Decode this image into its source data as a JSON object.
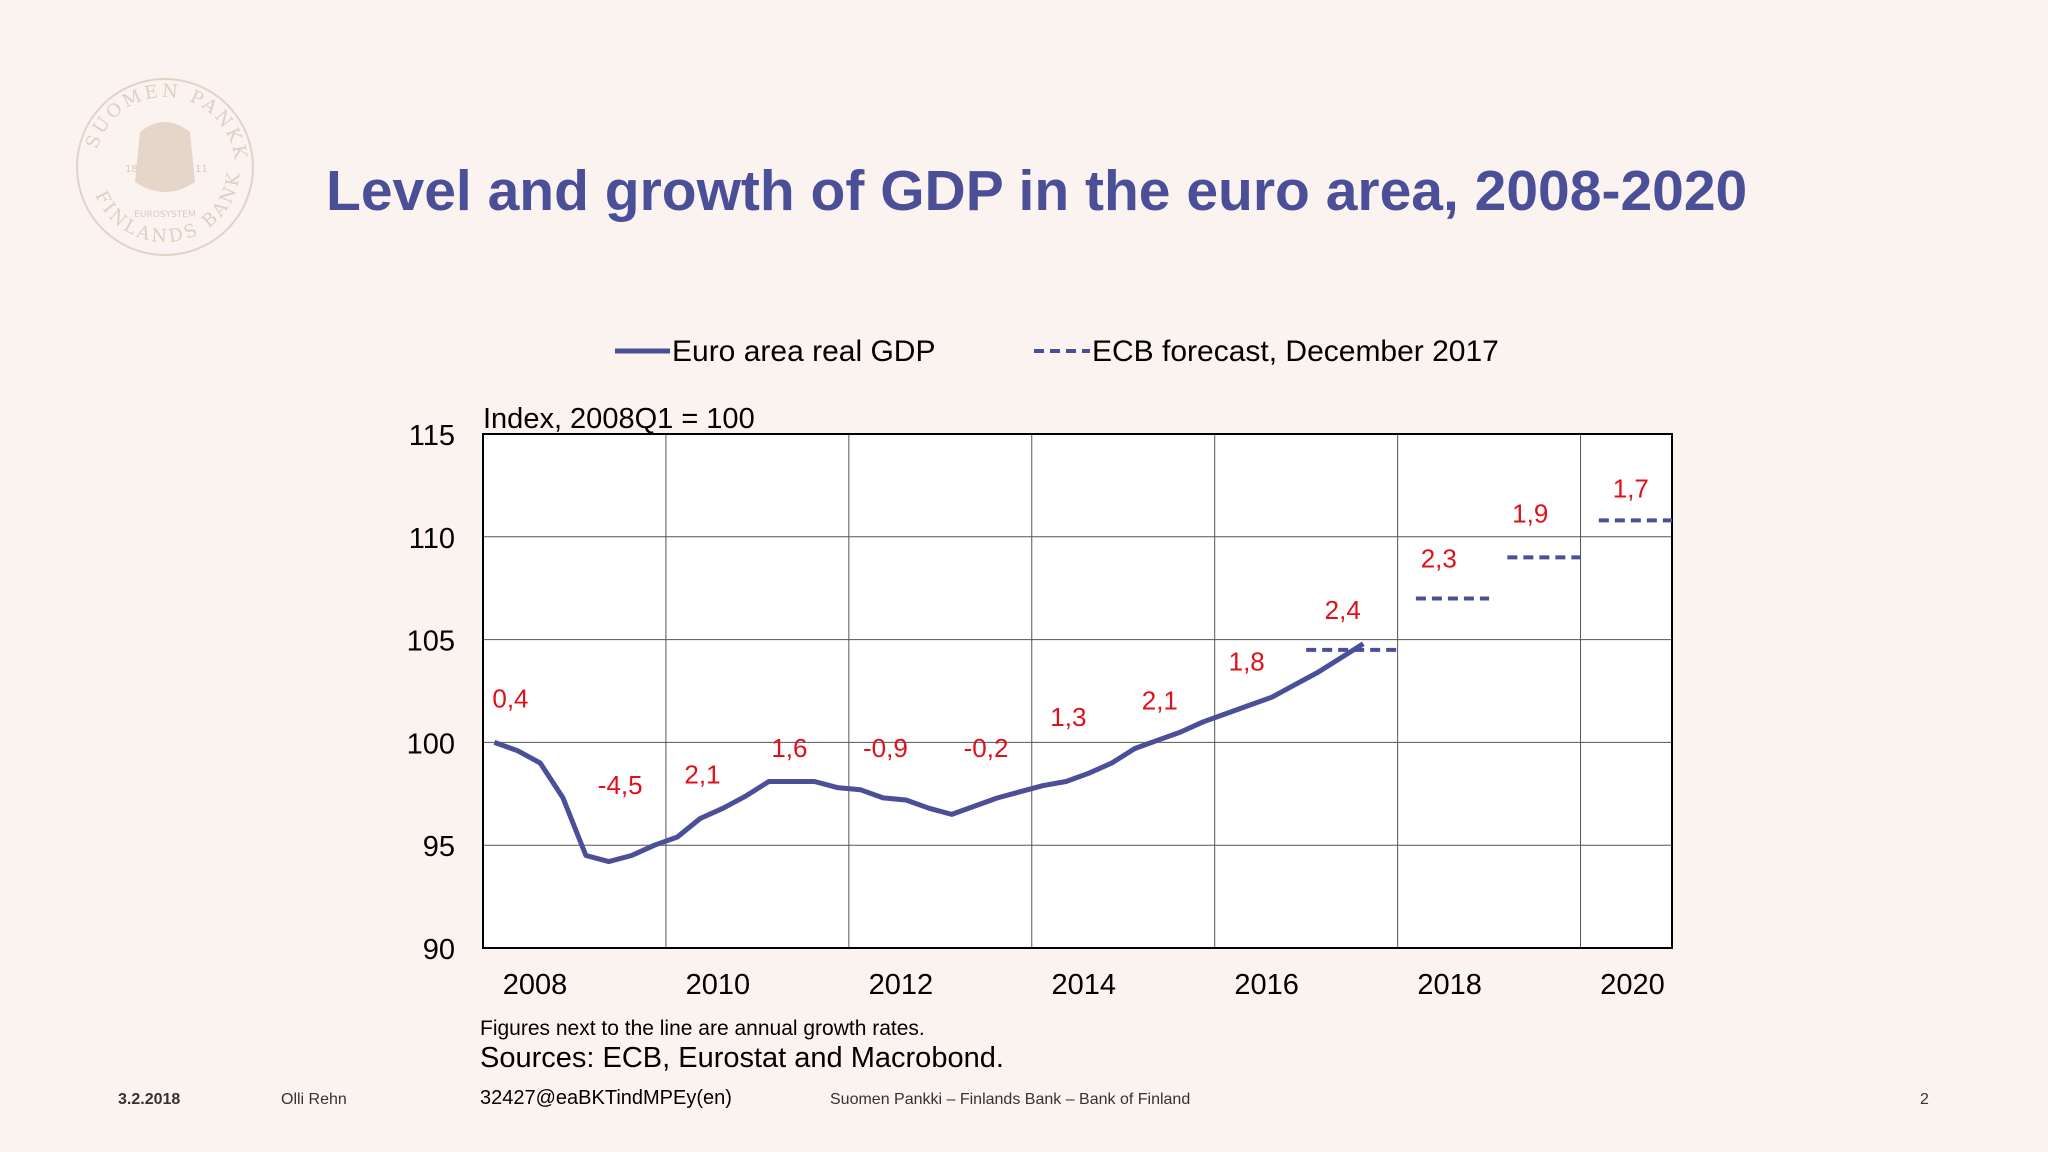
{
  "slide": {
    "title": "Level and growth of GDP in the euro area, 2008-2020",
    "logo_text": "SUOMEN PANKKI · FINLANDS BANK",
    "logo_years": [
      "18",
      "11"
    ],
    "logo_sub": "EUROSYSTEM",
    "note": "Figures next to the line are annual growth rates.",
    "sources": "Sources: ECB, Eurostat and Macrobond.",
    "footer": {
      "date": "3.2.2018",
      "author": "Olli Rehn",
      "code": "32427@eaBKTindMPEy(en)",
      "org": "Suomen Pankki – Finlands Bank – Bank of Finland",
      "page": "2"
    },
    "colors": {
      "title": "#4b4f98",
      "series": "#4b4f98",
      "labels": "#e0101a",
      "background": "#fbf3f0"
    }
  },
  "chart_data": {
    "type": "line",
    "ylabel": "Index, 2008Q1 = 100",
    "ylim": [
      90,
      115
    ],
    "yticks": [
      90,
      95,
      100,
      105,
      110,
      115
    ],
    "xlim": [
      2008,
      2021
    ],
    "xticks": [
      2008,
      2010,
      2012,
      2014,
      2016,
      2018,
      2020
    ],
    "grid": true,
    "legend": "top",
    "series": [
      {
        "name": "Euro area real GDP",
        "style": "solid",
        "x": [
          2008.125,
          2008.375,
          2008.625,
          2008.875,
          2009.125,
          2009.375,
          2009.625,
          2009.875,
          2010.125,
          2010.375,
          2010.625,
          2010.875,
          2011.125,
          2011.375,
          2011.625,
          2011.875,
          2012.125,
          2012.375,
          2012.625,
          2012.875,
          2013.125,
          2013.375,
          2013.625,
          2013.875,
          2014.125,
          2014.375,
          2014.625,
          2014.875,
          2015.125,
          2015.375,
          2015.625,
          2015.875,
          2016.125,
          2016.375,
          2016.625,
          2016.875,
          2017.125,
          2017.375,
          2017.625
        ],
        "y": [
          100.0,
          99.6,
          99.0,
          97.3,
          94.5,
          94.2,
          94.5,
          95.0,
          95.4,
          96.3,
          96.8,
          97.4,
          98.1,
          98.1,
          98.1,
          97.8,
          97.7,
          97.3,
          97.2,
          96.8,
          96.5,
          96.9,
          97.3,
          97.6,
          97.9,
          98.1,
          98.5,
          99.0,
          99.7,
          100.1,
          100.5,
          101.0,
          101.4,
          101.8,
          102.2,
          102.8,
          103.4,
          104.1,
          104.8
        ]
      },
      {
        "name": "ECB forecast, December 2017",
        "style": "dashed",
        "segments": [
          {
            "x": [
              2017.0,
              2018.0
            ],
            "y": 104.5
          },
          {
            "x": [
              2018.2,
              2019.0
            ],
            "y": 107.0
          },
          {
            "x": [
              2019.2,
              2020.0
            ],
            "y": 109.0
          },
          {
            "x": [
              2020.2,
              2021.0
            ],
            "y": 110.8
          }
        ]
      }
    ],
    "annotations": [
      {
        "text": "0,4",
        "x": 2008.3,
        "y": 101.7
      },
      {
        "text": "-4,5",
        "x": 2009.5,
        "y": 97.5
      },
      {
        "text": "2,1",
        "x": 2010.4,
        "y": 98.0
      },
      {
        "text": "1,6",
        "x": 2011.35,
        "y": 99.3
      },
      {
        "text": "-0,9",
        "x": 2012.4,
        "y": 99.3
      },
      {
        "text": "-0,2",
        "x": 2013.5,
        "y": 99.3
      },
      {
        "text": "1,3",
        "x": 2014.4,
        "y": 100.8
      },
      {
        "text": "2,1",
        "x": 2015.4,
        "y": 101.6
      },
      {
        "text": "1,8",
        "x": 2016.35,
        "y": 103.5
      },
      {
        "text": "2,4",
        "x": 2017.4,
        "y": 106.0
      },
      {
        "text": "2,3",
        "x": 2018.45,
        "y": 108.5
      },
      {
        "text": "1,9",
        "x": 2019.45,
        "y": 110.7
      },
      {
        "text": "1,7",
        "x": 2020.55,
        "y": 111.9
      }
    ]
  }
}
